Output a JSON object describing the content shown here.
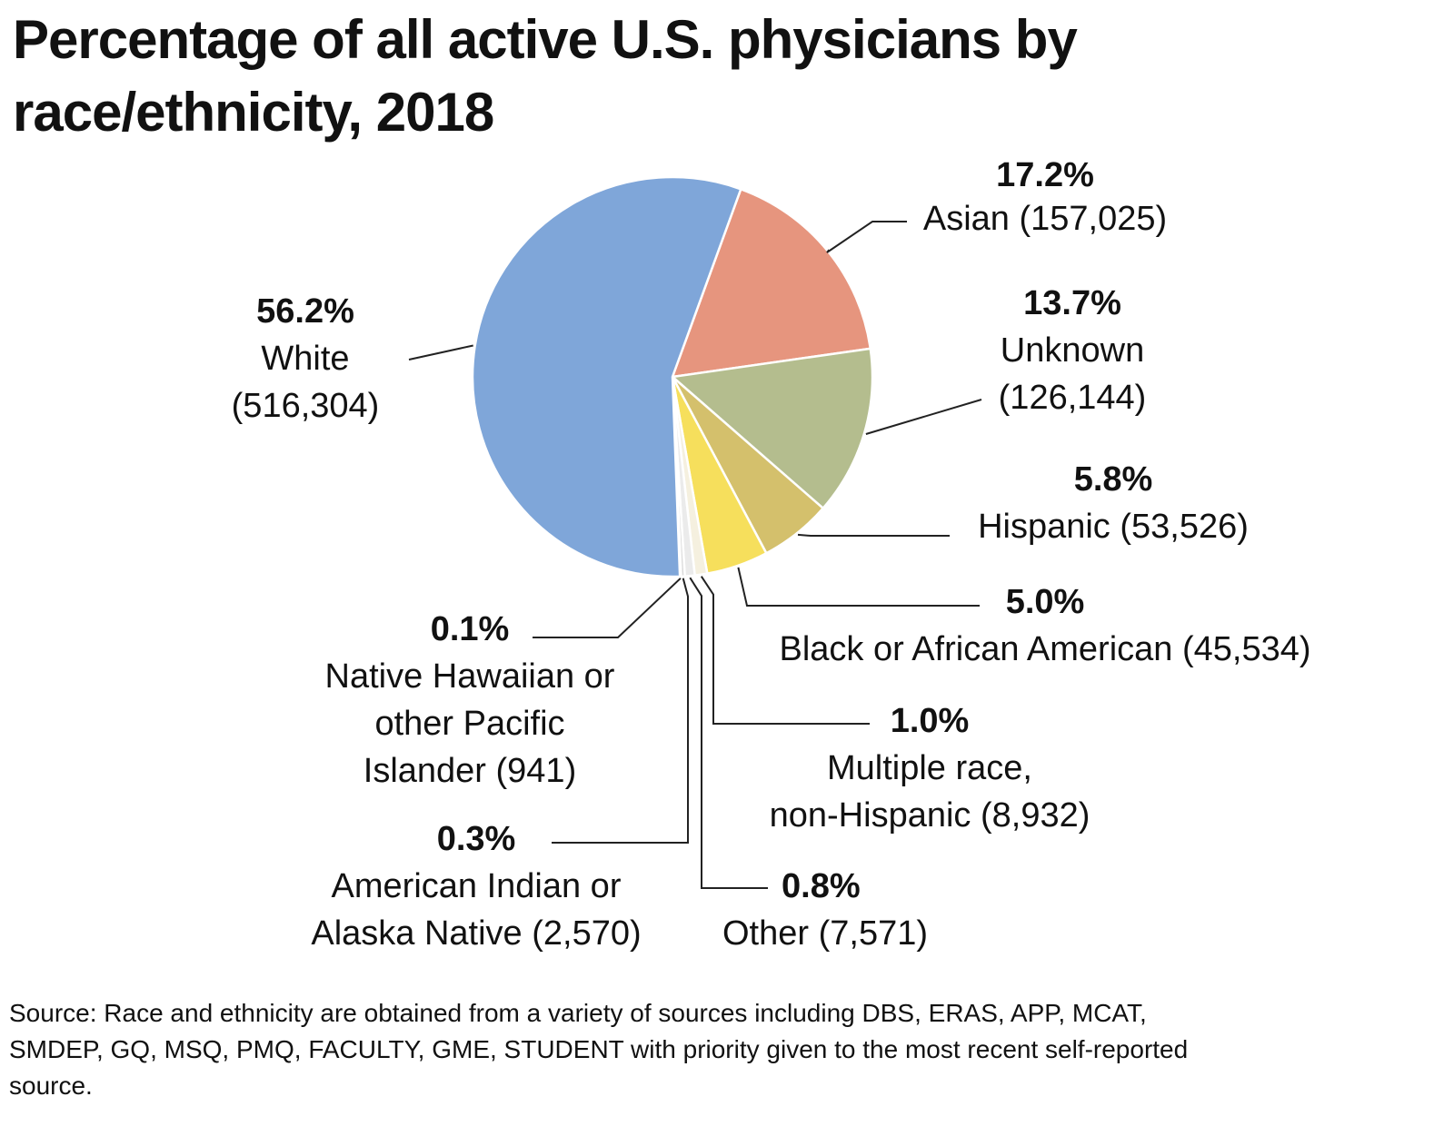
{
  "chart_data": {
    "type": "pie",
    "title": "Percentage of all active U.S. physicians by race/ethnicity, 2018",
    "slices": [
      {
        "name": "Asian",
        "count": "157,025",
        "percent": 17.2,
        "percent_label": "17.2%",
        "color": "#e6957e",
        "label_lines": [
          "Asian (157,025)"
        ]
      },
      {
        "name": "Unknown",
        "count": "126,144",
        "percent": 13.7,
        "percent_label": "13.7%",
        "color": "#b4bd8e",
        "label_lines": [
          "Unknown",
          "(126,144)"
        ]
      },
      {
        "name": "Hispanic",
        "count": "53,526",
        "percent": 5.8,
        "percent_label": "5.8%",
        "color": "#d4c06c",
        "label_lines": [
          "Hispanic (53,526)"
        ]
      },
      {
        "name": "Black or African American",
        "count": "45,534",
        "percent": 5.0,
        "percent_label": "5.0%",
        "color": "#f6df5c",
        "label_lines": [
          "Black or African American (45,534)"
        ]
      },
      {
        "name": "Multiple race, non-Hispanic",
        "count": "8,932",
        "percent": 1.0,
        "percent_label": "1.0%",
        "color": "#f5f0df",
        "label_lines": [
          "Multiple race,",
          "non-Hispanic (8,932)"
        ]
      },
      {
        "name": "Other",
        "count": "7,571",
        "percent": 0.8,
        "percent_label": "0.8%",
        "color": "#ebebeb",
        "label_lines": [
          "Other (7,571)"
        ]
      },
      {
        "name": "American Indian or Alaska Native",
        "count": "2,570",
        "percent": 0.3,
        "percent_label": "0.3%",
        "color": "#d9d9d9",
        "label_lines": [
          "American Indian or",
          "Alaska Native (2,570)"
        ]
      },
      {
        "name": "Native Hawaiian or other Pacific Islander",
        "count": "941",
        "percent": 0.1,
        "percent_label": "0.1%",
        "color": "#c8c8c8",
        "label_lines": [
          "Native Hawaiian or",
          "other Pacific",
          "Islander (941)"
        ]
      },
      {
        "name": "White",
        "count": "516,304",
        "percent": 56.2,
        "percent_label": "56.2%",
        "color": "#7fa6d9",
        "label_lines": [
          "White",
          "(516,304)"
        ]
      }
    ],
    "source": "Source: Race and ethnicity are obtained from a variety of sources including DBS, ERAS, APP, MCAT, SMDEP, GQ, MSQ, PMQ, FACULTY, GME, STUDENT with priority given to the most recent self-reported source."
  }
}
